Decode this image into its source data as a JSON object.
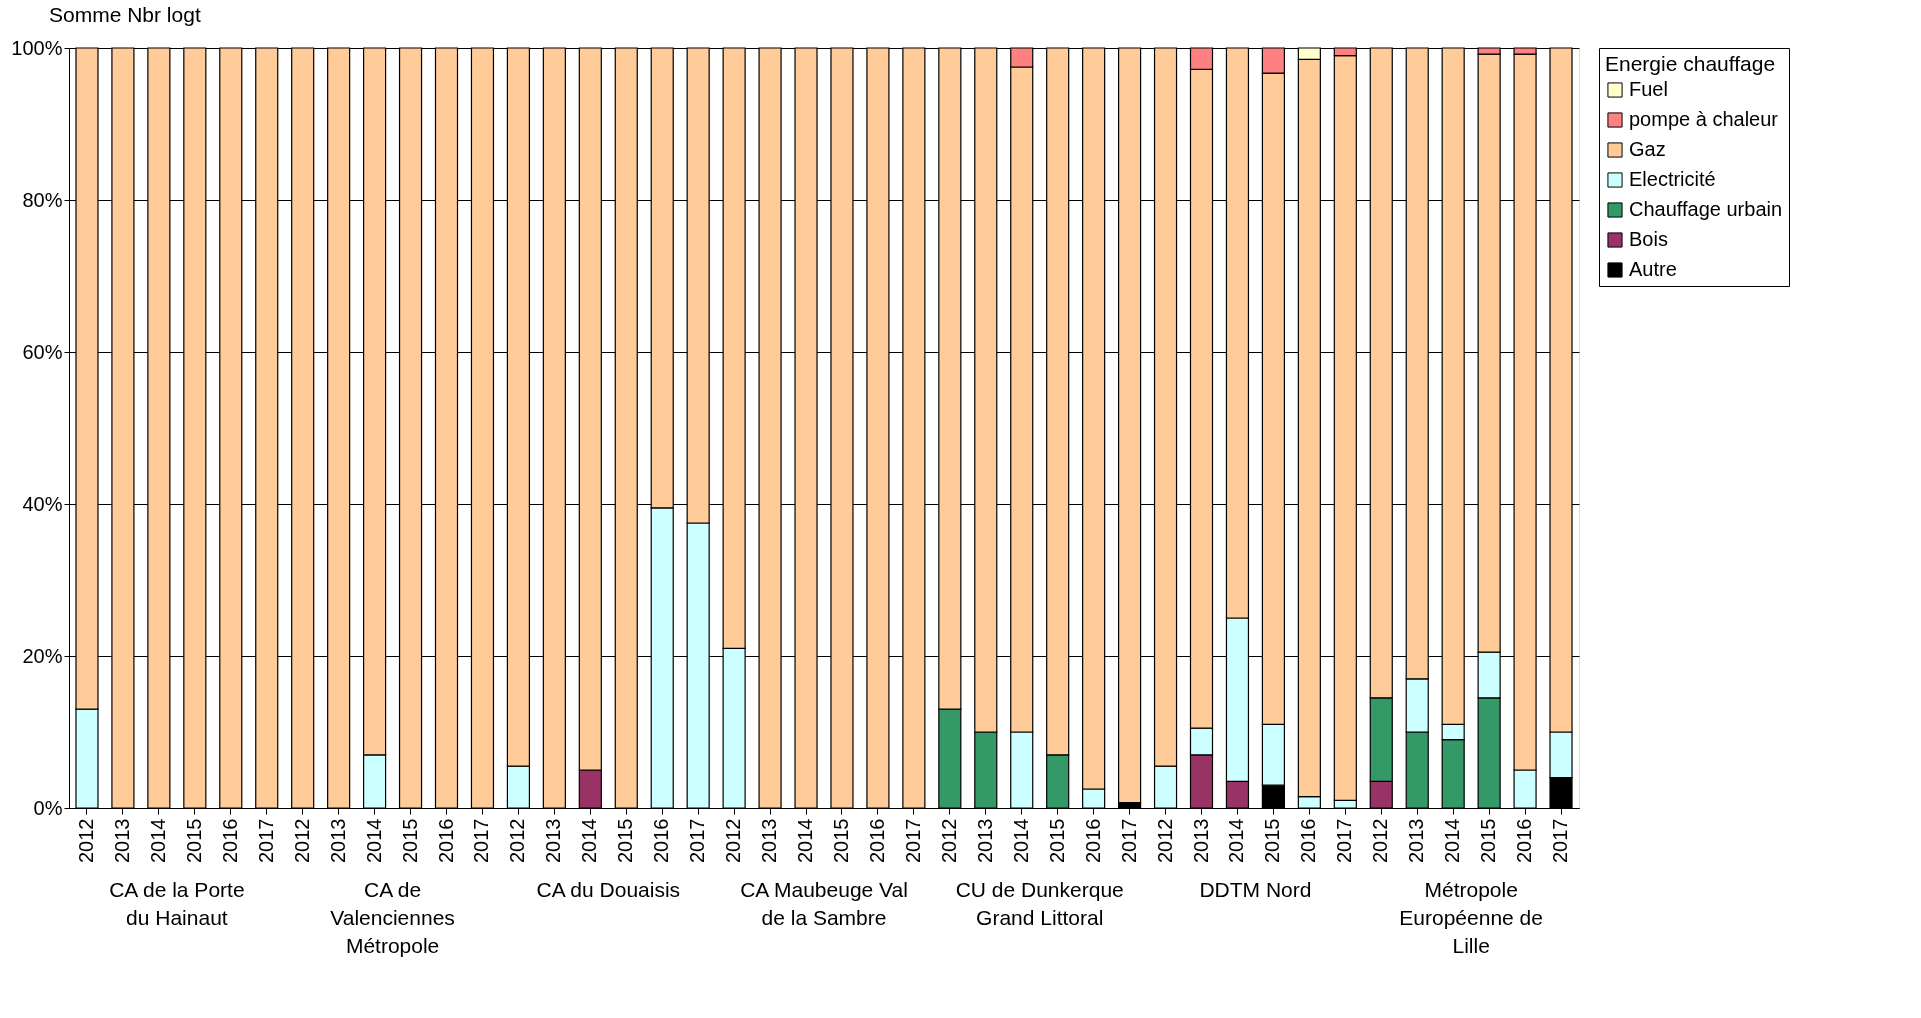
{
  "chart_data": {
    "type": "bar",
    "stacked": true,
    "title": "Somme Nbr logt",
    "legend_title": "Energie chauffage",
    "legend": "right",
    "grid": "y",
    "categories": [
      "2012",
      "2013",
      "2014",
      "2015",
      "2016",
      "2017",
      "2012",
      "2013",
      "2014",
      "2015",
      "2016",
      "2017",
      "2012",
      "2013",
      "2014",
      "2015",
      "2016",
      "2017",
      "2012",
      "2013",
      "2014",
      "2015",
      "2016",
      "2017",
      "2012",
      "2013",
      "2014",
      "2015",
      "2016",
      "2017",
      "2012",
      "2013",
      "2014",
      "2015",
      "2016",
      "2017",
      "2012",
      "2013",
      "2014",
      "2015",
      "2016",
      "2017"
    ],
    "annotations": [
      "CA de la Porte du Hainaut",
      "CA de Valenciennes Métropole",
      "CA du Douaisis",
      "CA Maubeuge Val de la Sambre",
      "CU de Dunkerque Grand Littoral",
      "DDTM Nord",
      "Métropole Européenne de Lille"
    ],
    "ylim": [
      0,
      100
    ],
    "yticks": [
      {
        "value": 0,
        "label": "0%"
      },
      {
        "value": 20,
        "label": "20%"
      },
      {
        "value": 40,
        "label": "40%"
      },
      {
        "value": 60,
        "label": "60%"
      },
      {
        "value": 80,
        "label": "80%"
      },
      {
        "value": 100,
        "label": "100%"
      }
    ],
    "series": [
      {
        "name": "Autre",
        "color": "#000000",
        "values": [
          0,
          0,
          0,
          0,
          0,
          0,
          0,
          0,
          0,
          0,
          0,
          0,
          0,
          0,
          0,
          0,
          0,
          0,
          0,
          0,
          0,
          0,
          0,
          0,
          0,
          0,
          0,
          0,
          0,
          0.7,
          0,
          0,
          0,
          3,
          0,
          0,
          0,
          0,
          0,
          0,
          0,
          4
        ]
      },
      {
        "name": "Bois",
        "color": "#993366",
        "values": [
          0,
          0,
          0,
          0,
          0,
          0,
          0,
          0,
          0,
          0,
          0,
          0,
          0,
          0,
          5,
          0,
          0,
          0,
          0,
          0,
          0,
          0,
          0,
          0,
          0,
          0,
          0,
          0,
          0,
          0,
          0,
          7,
          3.5,
          0,
          0,
          0,
          3.5,
          0,
          0,
          0,
          0,
          0
        ]
      },
      {
        "name": "Chauffage urbain",
        "color": "#339966",
        "values": [
          0,
          0,
          0,
          0,
          0,
          0,
          0,
          0,
          0,
          0,
          0,
          0,
          0,
          0,
          0,
          0,
          0,
          0,
          0,
          0,
          0,
          0,
          0,
          0,
          13,
          10,
          0,
          7,
          0,
          0,
          0,
          0,
          0,
          0,
          0,
          0,
          11,
          10,
          9,
          14.5,
          0,
          0
        ]
      },
      {
        "name": "Electricité",
        "color": "#ccffff",
        "values": [
          13,
          0,
          0,
          0,
          0,
          0,
          0,
          0,
          7,
          0,
          0,
          0,
          5.5,
          0,
          0,
          0,
          39.5,
          37.5,
          21,
          0,
          0,
          0,
          0,
          0,
          0,
          0,
          10,
          0,
          2.5,
          0,
          5.5,
          3.5,
          21.5,
          8,
          1.5,
          1,
          0,
          7,
          2,
          6,
          5,
          6
        ]
      },
      {
        "name": "Gaz",
        "color": "#ffcc99",
        "values": [
          87,
          100,
          100,
          100,
          100,
          100,
          100,
          100,
          93,
          100,
          100,
          100,
          94.5,
          100,
          95,
          100,
          60.5,
          62.5,
          79,
          100,
          100,
          100,
          100,
          100,
          87,
          90,
          87.5,
          93,
          97.5,
          99.3,
          94.5,
          86.7,
          75,
          85.7,
          97,
          98,
          85.5,
          83,
          89,
          78.7,
          94.2,
          90
        ]
      },
      {
        "name": "pompe à chaleur",
        "color": "#ff8080",
        "values": [
          0,
          0,
          0,
          0,
          0,
          0,
          0,
          0,
          0,
          0,
          0,
          0,
          0,
          0,
          0,
          0,
          0,
          0,
          0,
          0,
          0,
          0,
          0,
          0,
          0,
          0,
          2.5,
          0,
          0,
          0,
          0,
          2.8,
          0,
          3.3,
          0,
          1,
          0,
          0,
          0,
          0.8,
          0.8,
          0
        ]
      },
      {
        "name": "Fuel",
        "color": "#ffffcc",
        "values": [
          0,
          0,
          0,
          0,
          0,
          0,
          0,
          0,
          0,
          0,
          0,
          0,
          0,
          0,
          0,
          0,
          0,
          0,
          0,
          0,
          0,
          0,
          0,
          0,
          0,
          0,
          0,
          0,
          0,
          0,
          0,
          0,
          0,
          0,
          1.5,
          0,
          0,
          0,
          0,
          0,
          0,
          0
        ]
      }
    ]
  }
}
